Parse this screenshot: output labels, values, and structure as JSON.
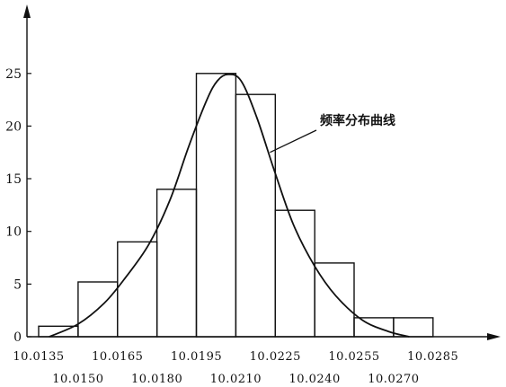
{
  "chart_data": {
    "type": "bar",
    "subtype": "histogram-with-frequency-curve",
    "title": "",
    "xlabel": "",
    "ylabel": "",
    "ylim": [
      0,
      30
    ],
    "xlim": [
      10.0135,
      10.0295
    ],
    "y_ticks": [
      "0",
      "5",
      "10",
      "15",
      "20",
      "25"
    ],
    "y_tick_values": [
      0,
      5,
      10,
      15,
      20,
      25
    ],
    "x_tick_values": [
      10.0135,
      10.015,
      10.0165,
      10.018,
      10.0195,
      10.021,
      10.0225,
      10.024,
      10.0255,
      10.027,
      10.0285
    ],
    "x_ticks_upper": [
      "10.0135",
      "10.0165",
      "10.0195",
      "10.0225",
      "10.0255",
      "10.0285"
    ],
    "x_ticks_lower": [
      "10.0150",
      "10.0180",
      "10.0210",
      "10.0240",
      "10.0270"
    ],
    "bins": [
      {
        "start": 10.0135,
        "end": 10.015,
        "value": 1
      },
      {
        "start": 10.015,
        "end": 10.0165,
        "value": 5.2
      },
      {
        "start": 10.0165,
        "end": 10.018,
        "value": 9
      },
      {
        "start": 10.018,
        "end": 10.0195,
        "value": 14
      },
      {
        "start": 10.0195,
        "end": 10.021,
        "value": 25
      },
      {
        "start": 10.021,
        "end": 10.0225,
        "value": 23
      },
      {
        "start": 10.0225,
        "end": 10.024,
        "value": 12
      },
      {
        "start": 10.024,
        "end": 10.0255,
        "value": 7
      },
      {
        "start": 10.0255,
        "end": 10.027,
        "value": 1.8
      },
      {
        "start": 10.027,
        "end": 10.0285,
        "value": 1.8
      }
    ],
    "curve": {
      "label": "频率分布曲线",
      "points": [
        [
          10.0139,
          0
        ],
        [
          10.015,
          1.2
        ],
        [
          10.016,
          3.2
        ],
        [
          10.0168,
          5.6
        ],
        [
          10.0177,
          8.8
        ],
        [
          10.0185,
          13.0
        ],
        [
          10.0192,
          18.0
        ],
        [
          10.0199,
          22.5
        ],
        [
          10.0203,
          24.3
        ],
        [
          10.0207,
          24.9
        ],
        [
          10.0212,
          24.3
        ],
        [
          10.0218,
          20.8
        ],
        [
          10.0225,
          15.5
        ],
        [
          10.0232,
          10.6
        ],
        [
          10.024,
          6.7
        ],
        [
          10.0248,
          3.9
        ],
        [
          10.0258,
          1.6
        ],
        [
          10.0268,
          0.5
        ],
        [
          10.0276,
          0
        ]
      ],
      "label_anchor": [
        10.0223,
        17.5
      ]
    },
    "grid": false,
    "legend": "none"
  }
}
